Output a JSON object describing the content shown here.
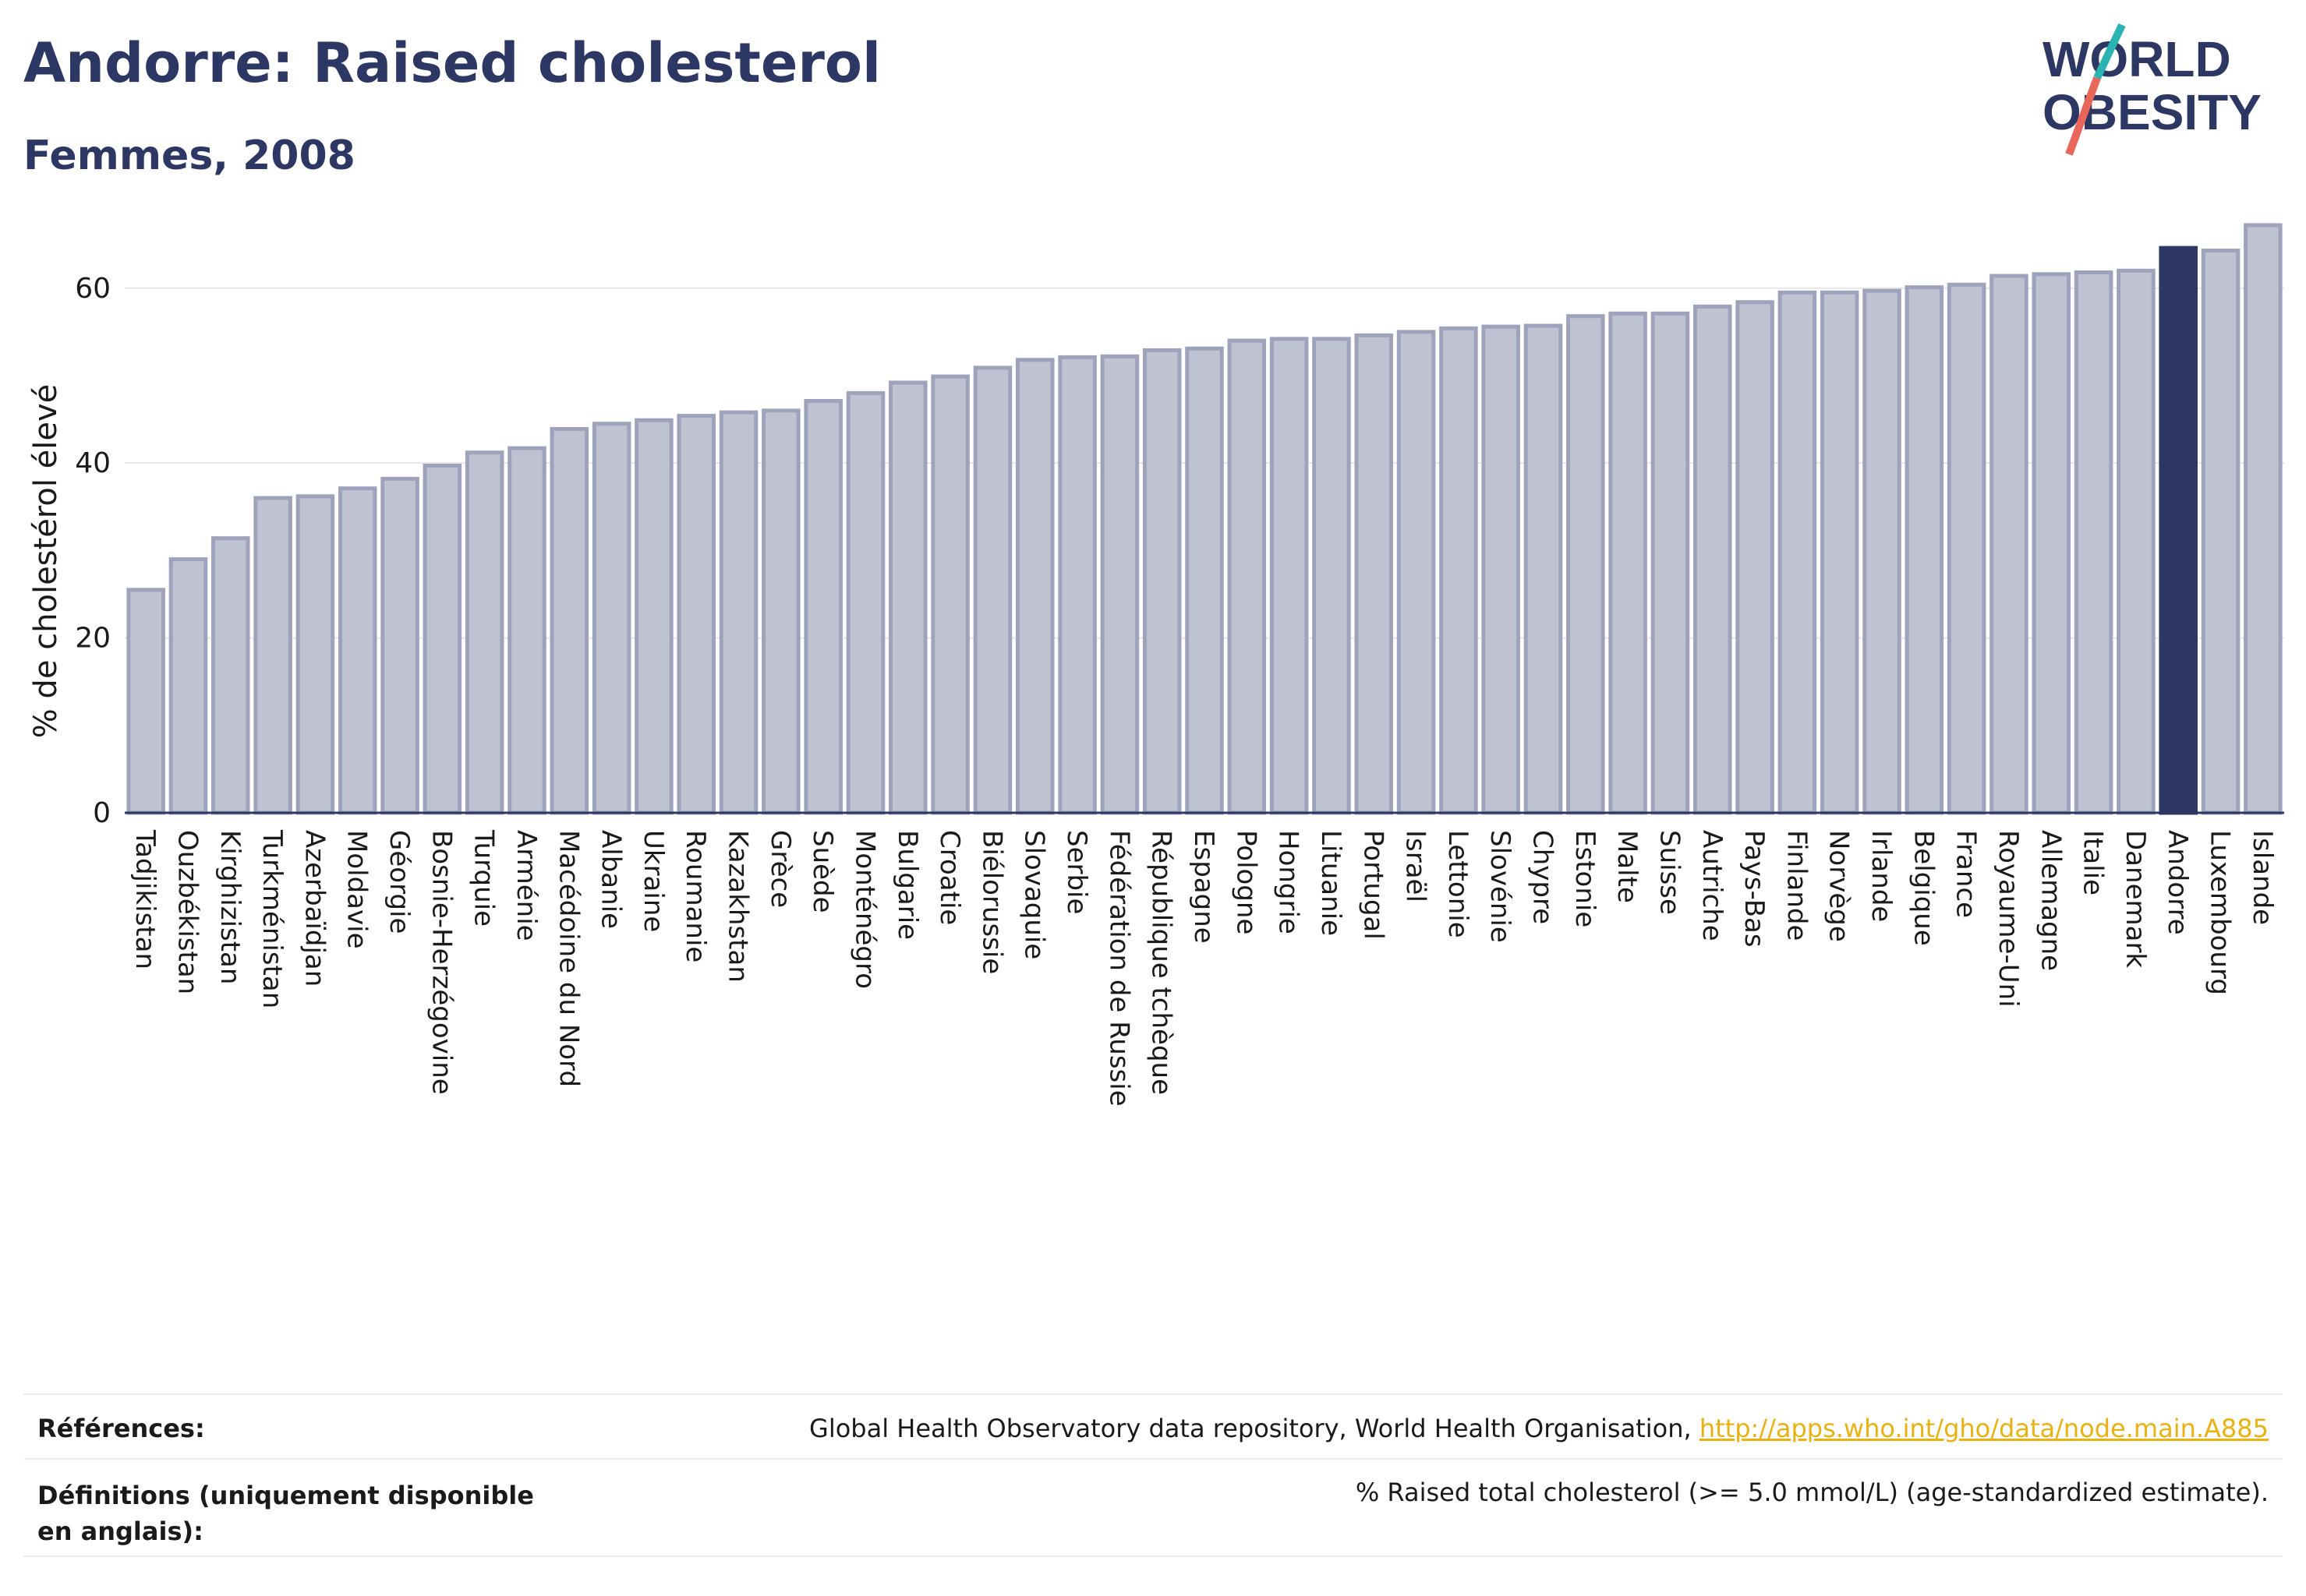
{
  "header": {
    "title": "Andorre: Raised cholesterol",
    "subtitle": "Femmes, 2008"
  },
  "logo": {
    "line1": "WORLD",
    "line2": "OBESITY",
    "colors": {
      "text": "#2c3763",
      "slash_teal": "#2bb3b1",
      "slash_red": "#e8665a"
    }
  },
  "colors": {
    "bar": "#bfc3d1",
    "bar_edge": "#9ea3bb",
    "highlight": "#2c3763",
    "grid": "#e6e6e6",
    "axis": "#2c3763"
  },
  "chart_data": {
    "type": "bar",
    "ylabel": "% de cholestérol élevé",
    "xlabel": "",
    "ylim": [
      0,
      68
    ],
    "yticks": [
      0,
      20,
      40,
      60
    ],
    "grid": true,
    "highlight": "Andorre",
    "categories": [
      "Tadjikistan",
      "Ouzbékistan",
      "Kirghizistan",
      "Turkménistan",
      "Azerbaïdjan",
      "Moldavie",
      "Géorgie",
      "Bosnie-Herzégovine",
      "Turquie",
      "Arménie",
      "Macédoine du Nord",
      "Albanie",
      "Ukraine",
      "Roumanie",
      "Kazakhstan",
      "Grèce",
      "Suède",
      "Monténégro",
      "Bulgarie",
      "Croatie",
      "Biélorussie",
      "Slovaquie",
      "Serbie",
      "Fédération de Russie",
      "République tchèque",
      "Espagne",
      "Pologne",
      "Hongrie",
      "Lituanie",
      "Portugal",
      "Israël",
      "Lettonie",
      "Slovénie",
      "Chypre",
      "Estonie",
      "Malte",
      "Suisse",
      "Autriche",
      "Pays-Bas",
      "Finlande",
      "Norvège",
      "Irlande",
      "Belgique",
      "France",
      "Royaume-Uni",
      "Allemagne",
      "Italie",
      "Danemark",
      "Andorre",
      "Luxembourg",
      "Islande"
    ],
    "values": [
      25.5,
      29.0,
      31.4,
      36.0,
      36.2,
      37.1,
      38.2,
      39.7,
      41.2,
      41.7,
      43.9,
      44.5,
      44.9,
      45.4,
      45.8,
      46.0,
      47.1,
      48.0,
      49.2,
      49.9,
      50.9,
      51.8,
      52.1,
      52.2,
      52.9,
      53.1,
      54.0,
      54.2,
      54.2,
      54.6,
      55.0,
      55.4,
      55.6,
      55.7,
      56.8,
      57.1,
      57.1,
      57.9,
      58.4,
      59.5,
      59.5,
      59.7,
      60.1,
      60.4,
      61.4,
      61.6,
      61.8,
      62.0,
      64.6,
      64.3,
      67.2
    ]
  },
  "footer": {
    "references_label": "Références:",
    "references_text": "Global Health Observatory data repository, World Health Organisation, ",
    "references_link": "http://apps.who.int/gho/data/node.main.A885",
    "definitions_label": "Définitions (uniquement disponible en anglais):",
    "definitions_text": "% Raised total cholesterol (>= 5.0 mmol/L) (age-standardized estimate)."
  }
}
